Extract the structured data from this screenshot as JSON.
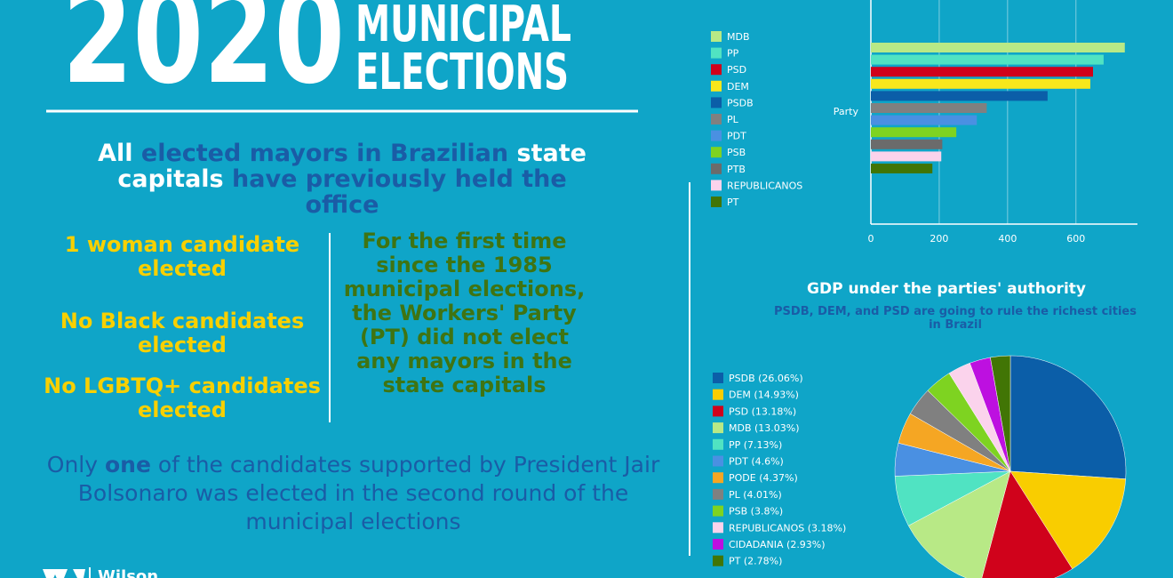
{
  "header": {
    "year": "2020",
    "line1": "MUNICIPAL",
    "line2": "ELECTIONS"
  },
  "headline": [
    "All ",
    "elected mayors in Brazilian ",
    "state capitals",
    " have previously held the office"
  ],
  "facts": [
    "1 woman candidate elected",
    "No Black candidates elected",
    "No LGBTQ+ candidates elected"
  ],
  "pt_fact": "For the first time since the 1985 municipal elections, the Workers' Party (PT) did not elect any mayors in the state capitals",
  "footnote": [
    "Only ",
    "one",
    " of the candidates supported by President Jair Bolsonaro was elected in the second round of the municipal elections"
  ],
  "logo": "Wilson",
  "chart_data": [
    {
      "type": "bar",
      "orientation": "horizontal",
      "y_label": "Party",
      "xlim": [
        0,
        780
      ],
      "xticks": [
        0,
        200,
        400,
        600
      ],
      "grid": true,
      "series": [
        {
          "name": "MDB",
          "color": "#b8e986",
          "values": [
            743
          ]
        },
        {
          "name": "PP",
          "color": "#50e3c2",
          "values": [
            681
          ]
        },
        {
          "name": "PSD",
          "color": "#d0021b",
          "values": [
            650
          ]
        },
        {
          "name": "DEM",
          "color": "#f8e71c",
          "values": [
            642
          ]
        },
        {
          "name": "PSDB",
          "color": "#0b5ea8",
          "values": [
            517
          ]
        },
        {
          "name": "PL",
          "color": "#808080",
          "values": [
            339
          ]
        },
        {
          "name": "PDT",
          "color": "#4a90e2",
          "values": [
            310
          ]
        },
        {
          "name": "PSB",
          "color": "#7ed321",
          "values": [
            250
          ]
        },
        {
          "name": "PTB",
          "color": "#6b6b6b",
          "values": [
            209
          ]
        },
        {
          "name": "REPUBLICANOS",
          "color": "#fbd3ec",
          "values": [
            206
          ]
        },
        {
          "name": "PT",
          "color": "#417505",
          "values": [
            180
          ]
        }
      ]
    },
    {
      "type": "pie",
      "title": "GDP under the parties' authority",
      "subtitle": "PSDB, DEM, and PSD are going to rule the richest cities in Brazil",
      "categories": [
        "PSDB (26.06%)",
        "DEM (14.93%)",
        "PSD (13.18%)",
        "MDB (13.03%)",
        "PP (7.13%)",
        "PDT (4.6%)",
        "PODE (4.37%)",
        "PL (4.01%)",
        "PSB (3.8%)",
        "REPUBLICANOS (3.18%)",
        "CIDADANIA (2.93%)",
        "PT (2.78%)"
      ],
      "values": [
        26.06,
        14.93,
        13.18,
        13.03,
        7.13,
        4.6,
        4.37,
        4.01,
        3.8,
        3.18,
        2.93,
        2.78
      ],
      "colors": [
        "#0b5ea8",
        "#f9cd00",
        "#d0021b",
        "#b8e986",
        "#50e3c2",
        "#4a90e2",
        "#f5a623",
        "#808080",
        "#7ed321",
        "#fbd3ec",
        "#bd10e0",
        "#417505"
      ]
    }
  ]
}
